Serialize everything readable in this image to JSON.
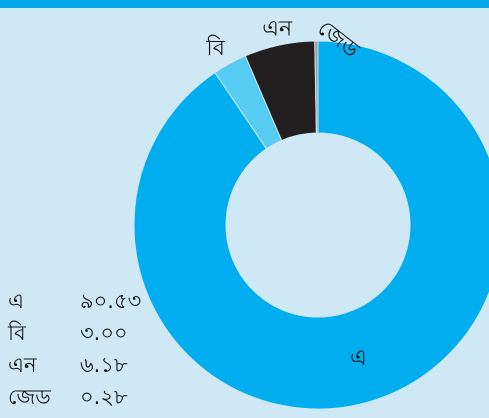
{
  "chart_data": {
    "type": "pie",
    "variant": "donut",
    "categories": [
      "এ",
      "বি",
      "এন",
      "জেড"
    ],
    "values": [
      90.53,
      3.0,
      6.18,
      0.28
    ],
    "value_labels": [
      "৯০.৫৩",
      "৩.০০",
      "৬.১৮",
      "০.২৮"
    ],
    "colors": [
      "#00aeef",
      "#56cbf4",
      "#231f20",
      "#9a9a9a"
    ],
    "background": "#cfe8f6",
    "accent_band": "#00a8ea",
    "title": "",
    "legend_placement": "bottom-left"
  },
  "legend": [
    {
      "label": "এ",
      "value": "৯০.৫৩"
    },
    {
      "label": "বি",
      "value": "৩.০০"
    },
    {
      "label": "এন",
      "value": "৬.১৮"
    },
    {
      "label": "জেড",
      "value": "০.২৮"
    }
  ]
}
